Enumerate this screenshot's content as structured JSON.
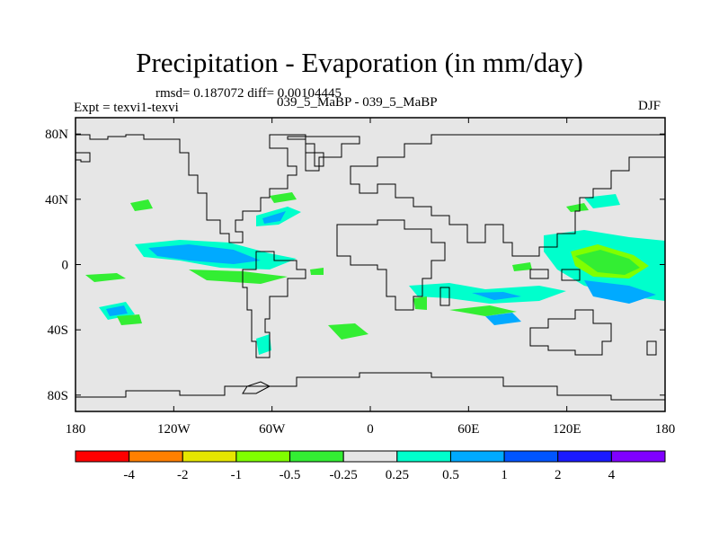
{
  "title": "Precipitation - Evaporation (in mm/day)",
  "stats": "rmsd= 0.187072 diff= 0.00104445",
  "left_label": "Expt = texvi1-texvi",
  "center_label": "039_5_MaBP - 039_5_MaBP",
  "right_label": "DJF",
  "chart_data": {
    "type": "heatmap",
    "title": "Precipitation - Evaporation (in mm/day)",
    "variable": "P - E difference",
    "units": "mm/day",
    "season": "DJF",
    "x_ticks": [
      "180",
      "120W",
      "60W",
      "0",
      "60E",
      "120E",
      "180"
    ],
    "y_ticks": [
      "80N",
      "40N",
      "0",
      "40S",
      "80S"
    ],
    "lon_range": [
      -180,
      180
    ],
    "lat_range": [
      -90,
      90
    ],
    "colorbar": {
      "labels": [
        "-4",
        "-2",
        "-1",
        "-0.5",
        "-0.25",
        "0.25",
        "0.5",
        "1",
        "2",
        "4"
      ],
      "colors": [
        "#ff0000",
        "#ff8000",
        "#e6e600",
        "#80ff00",
        "#33ee33",
        "#e6e6e6",
        "#00ffcc",
        "#00aaff",
        "#0055ff",
        "#1a1aff",
        "#8000ff"
      ]
    },
    "fill_default": "#e6e6e6",
    "note": "Mostly within +/-0.25 mm/day; positive anomalies (0.25-1) over tropical west Pacific and eastern Pacific ITCZ; negative (-0.25 to -0.5) patches in subtropics."
  }
}
